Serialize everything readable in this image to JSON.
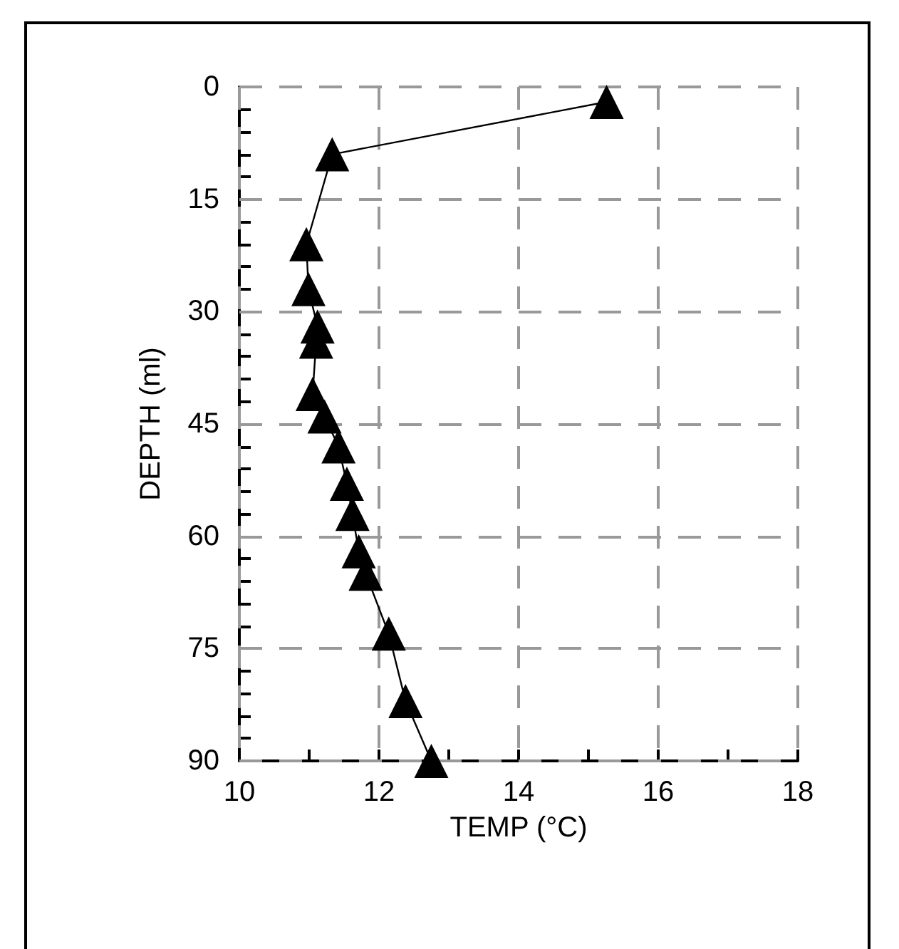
{
  "chart_data": {
    "type": "line",
    "xlabel": "TEMP (°C)",
    "ylabel": "DEPTH (ml)",
    "x": [
      15.26,
      11.33,
      10.96,
      10.99,
      11.12,
      11.1,
      11.05,
      11.22,
      11.42,
      11.54,
      11.62,
      11.71,
      11.81,
      12.14,
      12.38,
      12.75
    ],
    "values": [
      2,
      9,
      21,
      27,
      32,
      34,
      41,
      44,
      48,
      53,
      57,
      62,
      65,
      73,
      82,
      90
    ],
    "color": "#000000",
    "marker": "triangle",
    "line_style": "solid",
    "xlim": [
      10,
      18
    ],
    "ylim": [
      90,
      0
    ],
    "xticks": [
      10,
      {
        "value": 11,
        "label": null
      },
      12,
      {
        "value": 13,
        "label": null
      },
      14,
      {
        "value": 15,
        "label": null
      },
      16,
      {
        "value": 17,
        "label": null
      },
      18
    ],
    "yticks": [
      0,
      {
        "value": 3,
        "label": null
      },
      {
        "value": 6,
        "label": null
      },
      {
        "value": 9,
        "label": null
      },
      {
        "value": 12,
        "label": null
      },
      15,
      {
        "value": 18,
        "label": null
      },
      {
        "value": 21,
        "label": null
      },
      {
        "value": 24,
        "label": null
      },
      {
        "value": 27,
        "label": null
      },
      30,
      {
        "value": 33,
        "label": null
      },
      {
        "value": 36,
        "label": null
      },
      {
        "value": 39,
        "label": null
      },
      {
        "value": 42,
        "label": null
      },
      45,
      {
        "value": 48,
        "label": null
      },
      {
        "value": 51,
        "label": null
      },
      {
        "value": 54,
        "label": null
      },
      {
        "value": 57,
        "label": null
      },
      60,
      {
        "value": 63,
        "label": null
      },
      {
        "value": 66,
        "label": null
      },
      {
        "value": 69,
        "label": null
      },
      {
        "value": 72,
        "label": null
      },
      75,
      {
        "value": 78,
        "label": null
      },
      {
        "value": 81,
        "label": null
      },
      {
        "value": 84,
        "label": null
      },
      {
        "value": 87,
        "label": null
      },
      90
    ],
    "grid": true
  }
}
